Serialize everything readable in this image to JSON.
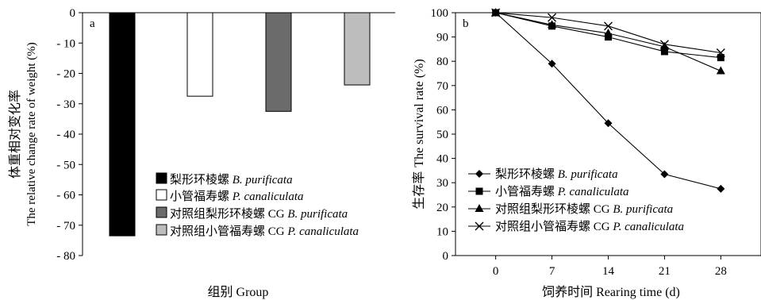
{
  "chart_data": [
    {
      "panel": "a",
      "type": "bar",
      "ylabel_cn": "体重相对变化率",
      "ylabel_en": "The relative change rate of weight (%)",
      "xlabel": "组别 Group",
      "ylim": [
        -80,
        0
      ],
      "yticks": [
        0,
        -10,
        -20,
        -30,
        -40,
        -50,
        -60,
        -70,
        -80
      ],
      "ytick_labels": [
        "0",
        "- 10",
        "- 20",
        "- 30",
        "- 40",
        "- 50",
        "- 60",
        "- 70",
        "- 80"
      ],
      "grid": false,
      "legend_position": "bottom-right",
      "series": [
        {
          "cn": "梨形环棱螺",
          "en": "B. purificata",
          "value": -73.5,
          "color": "#000000"
        },
        {
          "cn": "小管福寿螺",
          "en": "P. canaliculata",
          "value": -27.5,
          "color": "#ffffff"
        },
        {
          "cn": "对照组梨形环棱螺 CG",
          "en": "B. purificata",
          "value": -32.5,
          "color": "#6b6b6b"
        },
        {
          "cn": "对照组小管福寿螺 CG",
          "en": "P. canaliculata",
          "value": -23.8,
          "color": "#bdbdbd"
        }
      ]
    },
    {
      "panel": "b",
      "type": "line",
      "ylabel_cn": "生存率",
      "ylabel_en": "The survival rate (%)",
      "xlabel": "饲养时间 Rearing time (d)",
      "x": [
        0,
        7,
        14,
        21,
        28
      ],
      "xticks": [
        "0",
        "7",
        "14",
        "21",
        "28"
      ],
      "xlim": [
        -5,
        33
      ],
      "ylim": [
        0,
        100
      ],
      "yticks": [
        0,
        10,
        20,
        30,
        40,
        50,
        60,
        70,
        80,
        90,
        100
      ],
      "grid": false,
      "legend_position": "bottom-left",
      "series": [
        {
          "cn": "梨形环棱螺",
          "en": "B. purificata",
          "marker": "diamond",
          "values": [
            100,
            79,
            54.5,
            33.5,
            27.5
          ]
        },
        {
          "cn": "小管福寿螺",
          "en": "P. canaliculata",
          "marker": "square",
          "values": [
            100,
            94.5,
            90,
            84,
            81.5
          ]
        },
        {
          "cn": "对照组梨形环棱螺 CG",
          "en": "B. purificata",
          "marker": "triangle",
          "values": [
            100,
            95,
            91.5,
            86,
            76
          ]
        },
        {
          "cn": "对照组小管福寿螺 CG",
          "en": "P. canaliculata",
          "marker": "cross",
          "values": [
            100,
            98,
            94.5,
            87,
            83.5
          ]
        }
      ]
    }
  ]
}
